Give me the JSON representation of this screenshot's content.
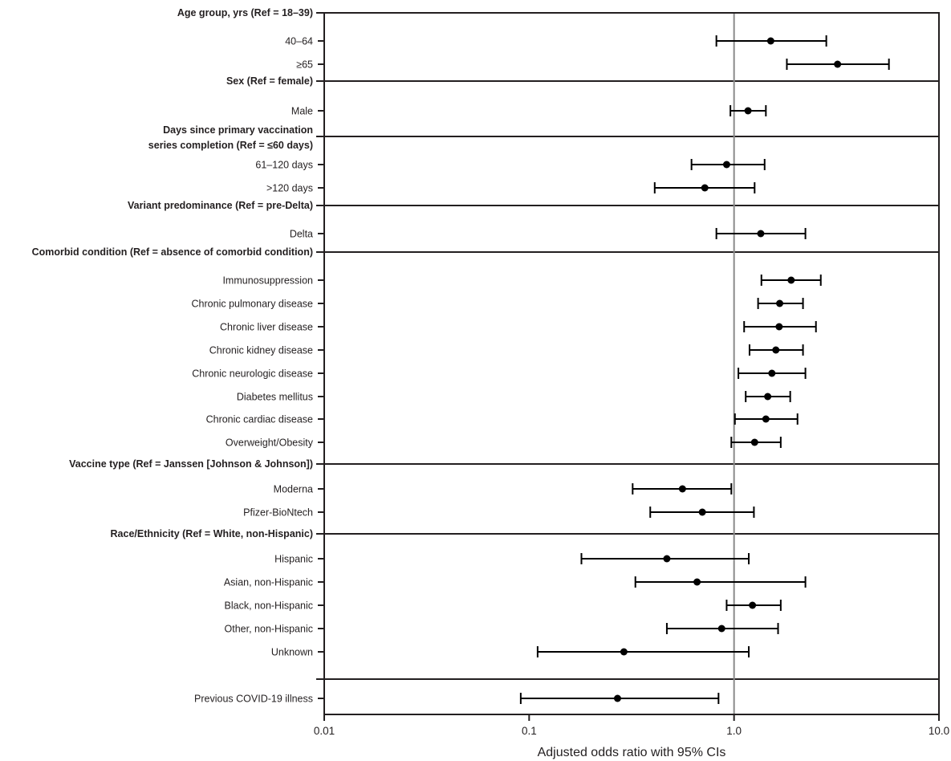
{
  "chart_data": {
    "type": "forest",
    "xlabel": "Adjusted odds ratio with 95% CIs",
    "xscale": "log",
    "xlim": [
      0.01,
      10.0
    ],
    "xticks": [
      "0.01",
      "0.1",
      "1.0",
      "10.0"
    ],
    "reference_line": 1.0,
    "colors": {
      "points": "#000000",
      "reference_line": "#8a8a8a",
      "frame": "#231f20"
    },
    "rows": [
      {
        "type": "header",
        "label": "Age group, yrs (Ref = 18–39)"
      },
      {
        "type": "item",
        "label": "40–64",
        "or": 1.51,
        "lo": 0.82,
        "hi": 2.82
      },
      {
        "type": "item",
        "label": "≥65",
        "or": 3.2,
        "lo": 1.81,
        "hi": 5.7
      },
      {
        "type": "header",
        "label": "Sex (Ref = female)"
      },
      {
        "type": "item",
        "label": "Male",
        "or": 1.17,
        "lo": 0.96,
        "hi": 1.43
      },
      {
        "type": "header",
        "label": "Days since primary vaccination",
        "label2": "series completion (Ref = ≤60 days)"
      },
      {
        "type": "item",
        "label": "61–120 days",
        "or": 0.92,
        "lo": 0.62,
        "hi": 1.41
      },
      {
        "type": "item",
        "label": ">120 days",
        "or": 0.72,
        "lo": 0.41,
        "hi": 1.26
      },
      {
        "type": "header",
        "label": "Variant predominance (Ref = pre-Delta)"
      },
      {
        "type": "item",
        "label": "Delta",
        "or": 1.35,
        "lo": 0.82,
        "hi": 2.23
      },
      {
        "type": "header",
        "label": "Comorbid condition (Ref = absence of comorbid condition)"
      },
      {
        "type": "item",
        "label": "Immunosuppression",
        "or": 1.9,
        "lo": 1.36,
        "hi": 2.65
      },
      {
        "type": "item",
        "label": "Chronic pulmonary disease",
        "or": 1.67,
        "lo": 1.31,
        "hi": 2.17
      },
      {
        "type": "item",
        "label": "Chronic liver disease",
        "or": 1.66,
        "lo": 1.12,
        "hi": 2.51
      },
      {
        "type": "item",
        "label": "Chronic kidney disease",
        "or": 1.6,
        "lo": 1.19,
        "hi": 2.17
      },
      {
        "type": "item",
        "label": "Chronic neurologic disease",
        "or": 1.53,
        "lo": 1.05,
        "hi": 2.23
      },
      {
        "type": "item",
        "label": "Diabetes mellitus",
        "or": 1.46,
        "lo": 1.14,
        "hi": 1.88
      },
      {
        "type": "item",
        "label": "Chronic cardiac disease",
        "or": 1.43,
        "lo": 1.01,
        "hi": 2.04
      },
      {
        "type": "item",
        "label": "Overweight/Obesity",
        "or": 1.26,
        "lo": 0.97,
        "hi": 1.69
      },
      {
        "type": "header",
        "label": "Vaccine type (Ref = Janssen [Johnson & Johnson])"
      },
      {
        "type": "item",
        "label": "Moderna",
        "or": 0.56,
        "lo": 0.32,
        "hi": 0.97
      },
      {
        "type": "item",
        "label": "Pfizer-BioNtech",
        "or": 0.7,
        "lo": 0.39,
        "hi": 1.25
      },
      {
        "type": "header",
        "label": "Race/Ethnicity (Ref = White, non-Hispanic)"
      },
      {
        "type": "item",
        "label": "Hispanic",
        "or": 0.47,
        "lo": 0.18,
        "hi": 1.18
      },
      {
        "type": "item",
        "label": "Asian, non-Hispanic",
        "or": 0.66,
        "lo": 0.33,
        "hi": 2.23
      },
      {
        "type": "item",
        "label": "Black, non-Hispanic",
        "or": 1.23,
        "lo": 0.92,
        "hi": 1.69
      },
      {
        "type": "item",
        "label": "Other, non-Hispanic",
        "or": 0.87,
        "lo": 0.47,
        "hi": 1.64
      },
      {
        "type": "item",
        "label": "Unknown",
        "or": 0.29,
        "lo": 0.11,
        "hi": 1.18
      },
      {
        "type": "header",
        "label": ""
      },
      {
        "type": "item",
        "label": "Previous COVID-19 illness",
        "or": 0.27,
        "lo": 0.091,
        "hi": 0.84
      }
    ]
  }
}
